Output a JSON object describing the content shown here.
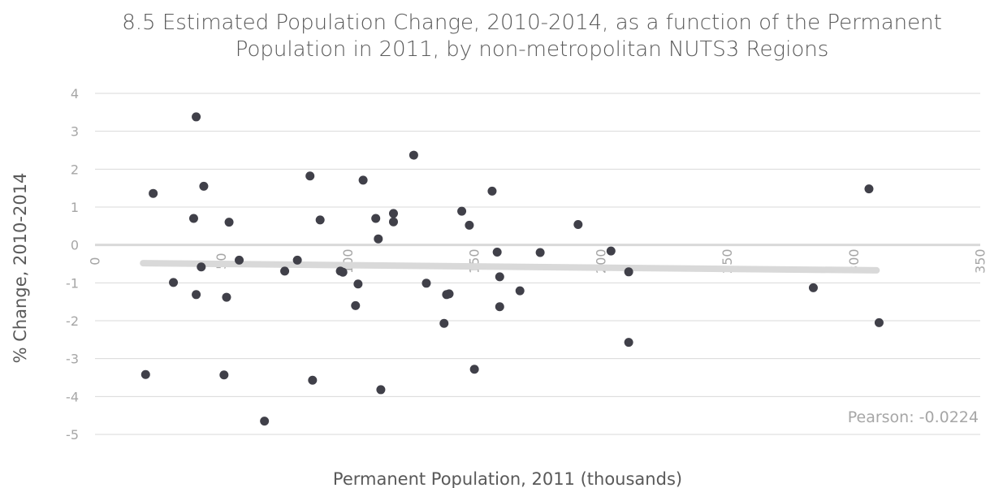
{
  "chart_data": {
    "type": "scatter",
    "title_lines": [
      "8.5  Estimated Population Change, 2010-2014, as a function of the Permanent",
      "Population in 2011, by non-metropolitan NUTS3 Regions"
    ],
    "xlabel": "Permanent Population, 2011 (thousands)",
    "ylabel": "% Change, 2010-2014",
    "xlim": [
      0,
      350
    ],
    "ylim": [
      -5,
      4
    ],
    "x_ticks": [
      0,
      50,
      100,
      150,
      200,
      250,
      300,
      350
    ],
    "y_ticks": [
      4,
      3,
      2,
      1,
      0,
      -1,
      -2,
      -3,
      -4,
      -5
    ],
    "grid": true,
    "annotation": "Pearson: -0.0224",
    "trendline": {
      "x": [
        19,
        309
      ],
      "y": [
        -0.48,
        -0.67
      ]
    },
    "series": [
      {
        "x": [
          20,
          23,
          31,
          39,
          40,
          40,
          42,
          43,
          51,
          52,
          53,
          57,
          67,
          75,
          80,
          85,
          86,
          89,
          97,
          98,
          103,
          104,
          106,
          111,
          112,
          113,
          118,
          118,
          126,
          131,
          138,
          139,
          140,
          145,
          148,
          150,
          157,
          159,
          160,
          160,
          168,
          176,
          191,
          204,
          211,
          211,
          284,
          306,
          310
        ],
        "y": [
          -3.42,
          1.36,
          -0.99,
          0.7,
          3.38,
          -1.31,
          -0.58,
          1.55,
          -3.43,
          -1.38,
          0.6,
          -0.4,
          -4.65,
          -0.69,
          -0.4,
          1.82,
          -3.57,
          0.66,
          -0.69,
          -0.72,
          -1.6,
          -1.03,
          1.71,
          0.7,
          0.16,
          -3.82,
          0.83,
          0.61,
          2.37,
          -1.01,
          -2.07,
          -1.31,
          -1.29,
          0.89,
          0.52,
          -3.28,
          1.42,
          -0.19,
          -1.63,
          -0.84,
          -1.21,
          -0.2,
          0.54,
          -0.16,
          -2.57,
          -0.71,
          -1.13,
          1.48,
          -2.05
        ]
      }
    ]
  },
  "colors": {
    "point": "#404049",
    "trendline": "#d9d9d9",
    "gridline": "#d9d9d9",
    "zero_line": "#d9d9d9"
  }
}
